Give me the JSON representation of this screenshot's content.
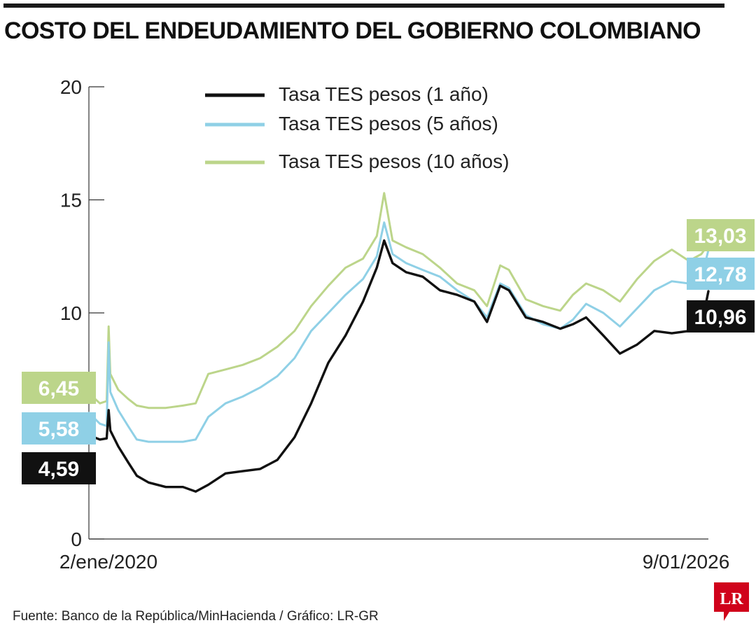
{
  "title": "COSTO DEL ENDEUDAMIENTO DEL GOBIERNO COLOMBIANO",
  "source": "Fuente: Banco de la República/MinHacienda / Gráfico: LR-GR",
  "logo_text": "LR",
  "colors": {
    "one_year": "#111111",
    "five_year": "#8fd0e6",
    "ten_year": "#bcd58a",
    "brand": "#d0021b",
    "axis": "#333333"
  },
  "chart_data": {
    "type": "line",
    "title": "COSTO DEL ENDEUDAMIENTO DEL GOBIERNO COLOMBIANO",
    "xlabel": "",
    "ylabel": "",
    "ylim": [
      0,
      20
    ],
    "yticks": [
      0,
      10,
      15,
      20
    ],
    "x_start_label": "2/ene/2020",
    "x_end_label": "9/01/2026",
    "xlim": [
      "2020-01-02",
      "2026-01-09"
    ],
    "grid": false,
    "legend_position": "top",
    "series": [
      {
        "name": "Tasa TES pesos (1 año)",
        "color": "#111111",
        "start_label": "4,59",
        "end_label": "10,96",
        "x": [
          "2020-01-02",
          "2020-02-10",
          "2020-03-05",
          "2020-03-12",
          "2020-03-18",
          "2020-04-15",
          "2020-05-20",
          "2020-06-20",
          "2020-08-01",
          "2020-10-01",
          "2020-12-01",
          "2021-01-15",
          "2021-03-01",
          "2021-05-01",
          "2021-07-01",
          "2021-09-01",
          "2021-11-01",
          "2022-01-01",
          "2022-03-01",
          "2022-05-01",
          "2022-07-01",
          "2022-09-01",
          "2022-10-20",
          "2022-11-15",
          "2022-12-15",
          "2023-02-01",
          "2023-04-01",
          "2023-06-01",
          "2023-08-01",
          "2023-10-01",
          "2023-11-15",
          "2024-01-01",
          "2024-02-01",
          "2024-04-01",
          "2024-06-01",
          "2024-08-01",
          "2024-09-15",
          "2024-11-01",
          "2025-01-01",
          "2025-03-01",
          "2025-05-01",
          "2025-07-01",
          "2025-09-01",
          "2025-11-01",
          "2025-12-15",
          "2026-01-09"
        ],
        "y": [
          4.59,
          4.4,
          4.45,
          5.7,
          4.8,
          4.1,
          3.4,
          2.8,
          2.5,
          2.3,
          2.3,
          2.1,
          2.4,
          2.9,
          3.0,
          3.1,
          3.5,
          4.5,
          6.0,
          7.8,
          9.0,
          10.5,
          12.0,
          13.2,
          12.2,
          11.8,
          11.6,
          11.0,
          10.8,
          10.5,
          9.6,
          11.2,
          11.0,
          9.8,
          9.6,
          9.3,
          9.5,
          9.8,
          9.0,
          8.2,
          8.6,
          9.2,
          9.1,
          9.2,
          9.4,
          10.96
        ]
      },
      {
        "name": "Tasa TES pesos (5 años)",
        "color": "#8fd0e6",
        "start_label": "5,58",
        "end_label": "12,78",
        "x": [
          "2020-01-02",
          "2020-02-10",
          "2020-03-05",
          "2020-03-12",
          "2020-03-18",
          "2020-04-15",
          "2020-05-20",
          "2020-06-20",
          "2020-08-01",
          "2020-10-01",
          "2020-12-01",
          "2021-01-15",
          "2021-03-01",
          "2021-05-01",
          "2021-07-01",
          "2021-09-01",
          "2021-11-01",
          "2022-01-01",
          "2022-03-01",
          "2022-05-01",
          "2022-07-01",
          "2022-09-01",
          "2022-10-20",
          "2022-11-15",
          "2022-12-15",
          "2023-02-01",
          "2023-04-01",
          "2023-06-01",
          "2023-08-01",
          "2023-10-01",
          "2023-11-15",
          "2024-01-01",
          "2024-02-01",
          "2024-04-01",
          "2024-06-01",
          "2024-08-01",
          "2024-09-15",
          "2024-11-01",
          "2025-01-01",
          "2025-03-01",
          "2025-05-01",
          "2025-07-01",
          "2025-09-01",
          "2025-11-01",
          "2025-12-15",
          "2026-01-09"
        ],
        "y": [
          5.58,
          5.1,
          5.0,
          8.7,
          6.5,
          5.7,
          5.0,
          4.4,
          4.3,
          4.3,
          4.3,
          4.4,
          5.4,
          6.0,
          6.3,
          6.7,
          7.2,
          8.0,
          9.2,
          10.0,
          10.8,
          11.5,
          12.5,
          14.0,
          12.6,
          12.2,
          11.9,
          11.6,
          11.0,
          10.5,
          9.8,
          11.3,
          11.1,
          9.9,
          9.5,
          9.3,
          9.7,
          10.4,
          10.0,
          9.4,
          10.2,
          11.0,
          11.4,
          11.3,
          11.5,
          12.78
        ]
      },
      {
        "name": "Tasa TES pesos (10 años)",
        "color": "#bcd58a",
        "start_label": "6,45",
        "end_label": "13,03",
        "x": [
          "2020-01-02",
          "2020-02-10",
          "2020-03-05",
          "2020-03-12",
          "2020-03-18",
          "2020-04-15",
          "2020-05-20",
          "2020-06-20",
          "2020-08-01",
          "2020-10-01",
          "2020-12-01",
          "2021-01-15",
          "2021-03-01",
          "2021-05-01",
          "2021-07-01",
          "2021-09-01",
          "2021-11-01",
          "2022-01-01",
          "2022-03-01",
          "2022-05-01",
          "2022-07-01",
          "2022-09-01",
          "2022-10-20",
          "2022-11-15",
          "2022-12-15",
          "2023-02-01",
          "2023-04-01",
          "2023-06-01",
          "2023-08-01",
          "2023-10-01",
          "2023-11-15",
          "2024-01-01",
          "2024-02-01",
          "2024-04-01",
          "2024-06-01",
          "2024-08-01",
          "2024-09-15",
          "2024-11-01",
          "2025-01-01",
          "2025-03-01",
          "2025-05-01",
          "2025-07-01",
          "2025-09-01",
          "2025-11-01",
          "2025-12-15",
          "2026-01-09"
        ],
        "y": [
          6.45,
          6.0,
          6.1,
          9.4,
          7.3,
          6.6,
          6.2,
          5.9,
          5.8,
          5.8,
          5.9,
          6.0,
          7.3,
          7.5,
          7.7,
          8.0,
          8.5,
          9.2,
          10.3,
          11.2,
          12.0,
          12.4,
          13.4,
          15.3,
          13.2,
          12.9,
          12.6,
          12.0,
          11.3,
          11.0,
          10.3,
          12.1,
          11.9,
          10.6,
          10.3,
          10.1,
          10.8,
          11.3,
          11.0,
          10.5,
          11.5,
          12.3,
          12.8,
          12.3,
          12.6,
          13.03
        ]
      }
    ]
  }
}
